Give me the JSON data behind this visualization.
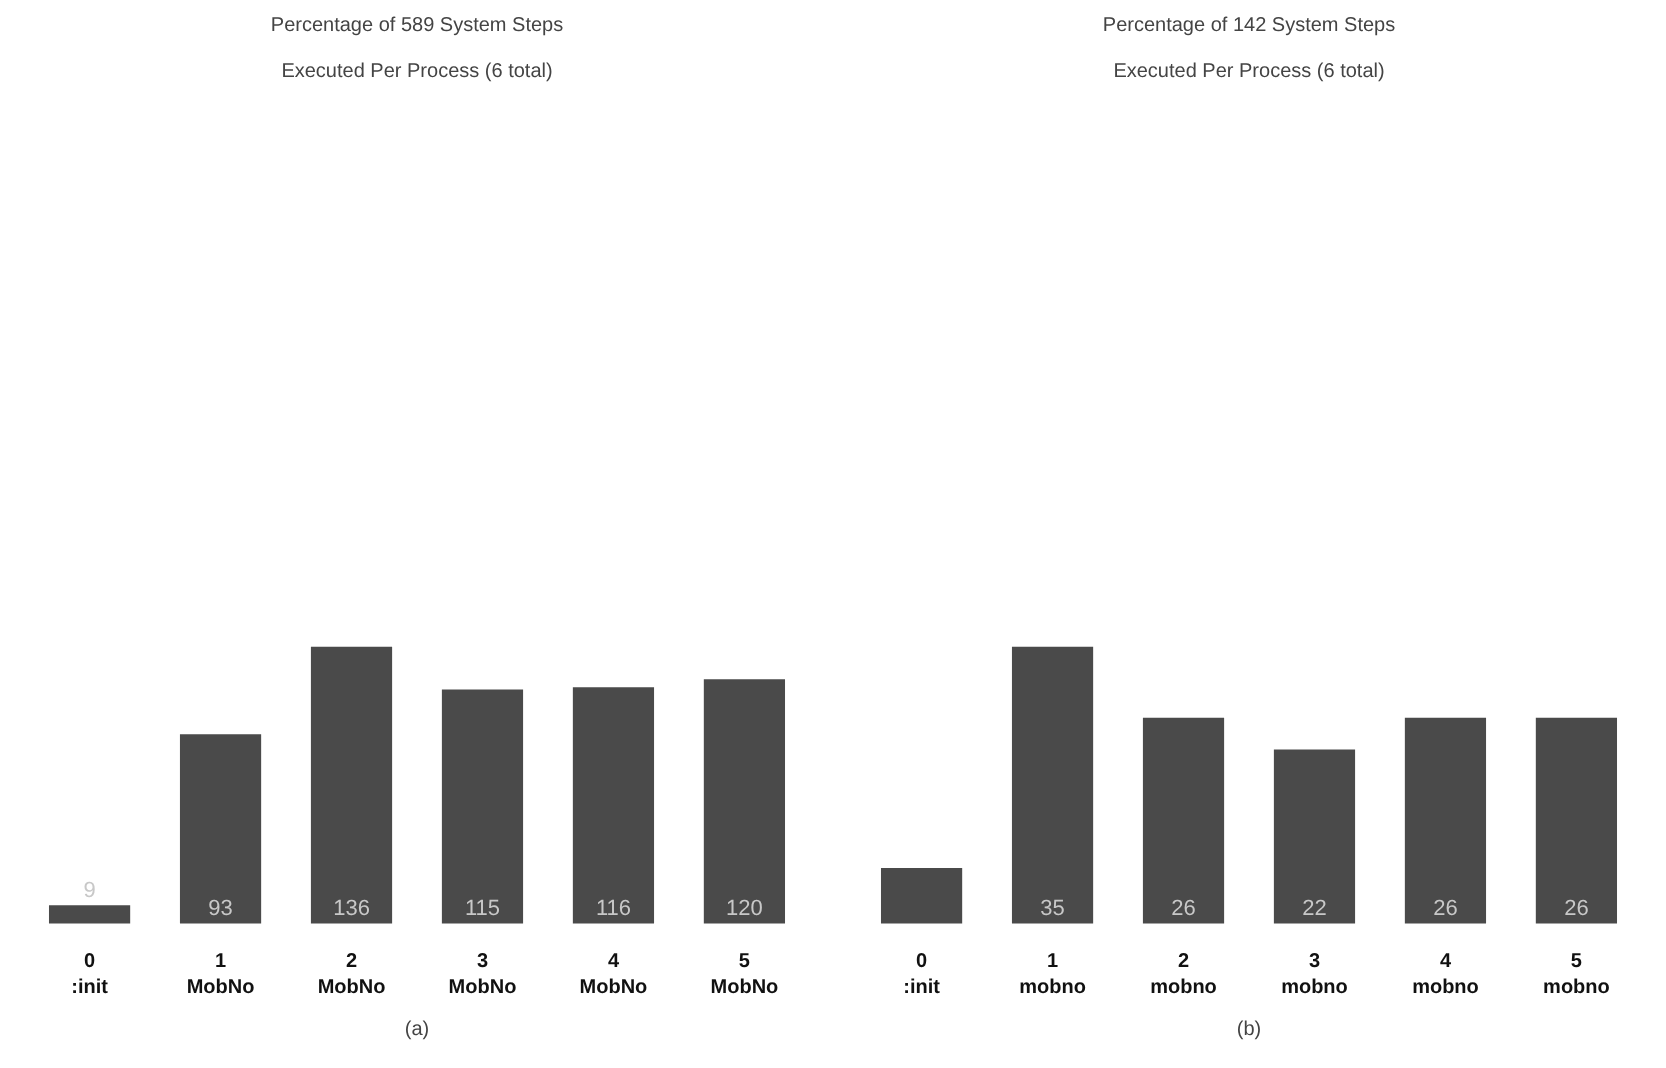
{
  "chart_data": [
    {
      "type": "bar",
      "title": "Percentage of 589 System Steps",
      "subtitle": "Executed Per Process (6 total)",
      "categories": [
        "0\n:init",
        "1\nMobNo",
        "2\nMobNo",
        "3\nMobNo",
        "4\nMobNo",
        "5\nMobNo"
      ],
      "values": [
        9,
        93,
        136,
        115,
        116,
        120
      ],
      "color": "#4a4a4a",
      "data_labels": true,
      "annotations": [
        "(a)"
      ]
    },
    {
      "type": "bar",
      "title": "Percentage of 142 System Steps",
      "subtitle": "Executed Per Process (6 total)",
      "categories": [
        "0\n:init",
        "1\nmobno",
        "2\nmobno",
        "3\nmobno",
        "4\nmobno",
        "5\nmobno"
      ],
      "values": [
        7,
        35,
        26,
        22,
        26,
        26
      ],
      "value_labels": [
        null,
        "35",
        "26",
        "22",
        "26",
        "26"
      ],
      "color": "#4a4a4a",
      "annotations": [
        "(b)"
      ]
    }
  ]
}
